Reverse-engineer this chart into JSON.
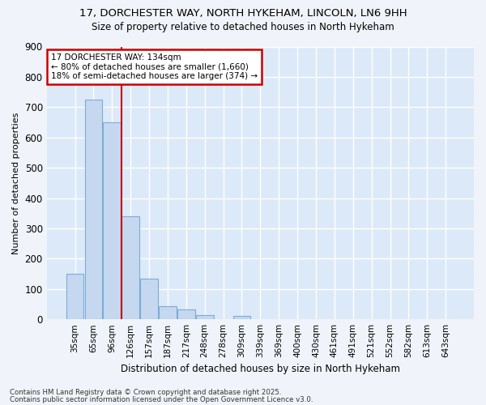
{
  "title_line1": "17, DORCHESTER WAY, NORTH HYKEHAM, LINCOLN, LN6 9HH",
  "title_line2": "Size of property relative to detached houses in North Hykeham",
  "xlabel": "Distribution of detached houses by size in North Hykeham",
  "ylabel": "Number of detached properties",
  "bar_labels": [
    "35sqm",
    "65sqm",
    "96sqm",
    "126sqm",
    "157sqm",
    "187sqm",
    "217sqm",
    "248sqm",
    "278sqm",
    "309sqm",
    "339sqm",
    "369sqm",
    "400sqm",
    "430sqm",
    "461sqm",
    "491sqm",
    "521sqm",
    "552sqm",
    "582sqm",
    "613sqm",
    "643sqm"
  ],
  "bar_values": [
    150,
    725,
    650,
    340,
    135,
    42,
    32,
    13,
    0,
    10,
    0,
    0,
    0,
    0,
    0,
    0,
    0,
    0,
    0,
    0,
    0
  ],
  "bar_color": "#c5d8f0",
  "bar_edge_color": "#7aadd4",
  "background_color": "#dce9f8",
  "grid_color": "#ffffff",
  "fig_background": "#f0f4fa",
  "vline_x": 2.5,
  "vline_color": "#cc0000",
  "annotation_text": "17 DORCHESTER WAY: 134sqm\n← 80% of detached houses are smaller (1,660)\n18% of semi-detached houses are larger (374) →",
  "annotation_box_color": "#ffffff",
  "annotation_box_edge": "#cc0000",
  "ylim": [
    0,
    900
  ],
  "yticks": [
    0,
    100,
    200,
    300,
    400,
    500,
    600,
    700,
    800,
    900
  ],
  "footnote1": "Contains HM Land Registry data © Crown copyright and database right 2025.",
  "footnote2": "Contains public sector information licensed under the Open Government Licence v3.0."
}
